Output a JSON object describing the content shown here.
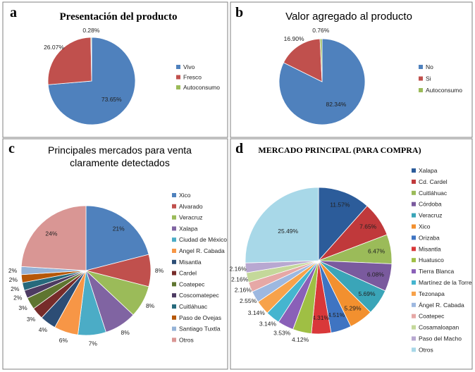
{
  "chart_data": [
    {
      "panel": "a",
      "type": "pie",
      "title": "Presentación del producto",
      "categories": [
        "Vivo",
        "Fresco",
        "Autoconsumo"
      ],
      "values": [
        73.65,
        26.07,
        0.28
      ],
      "labels": [
        "73.65%",
        "26.07%",
        "0.28%"
      ],
      "colors": [
        "#4f81bd",
        "#c0504d",
        "#9bbb59"
      ],
      "legend": "right"
    },
    {
      "panel": "b",
      "type": "pie",
      "title": "Valor agregado al producto",
      "categories": [
        "No",
        "Si",
        "Autoconsumo"
      ],
      "values": [
        82.34,
        16.9,
        0.76
      ],
      "labels": [
        "82.34%",
        "16.90%",
        "0.76%"
      ],
      "colors": [
        "#4f81bd",
        "#c0504d",
        "#9bbb59"
      ],
      "legend": "right"
    },
    {
      "panel": "c",
      "type": "pie",
      "title": "Principales mercados para venta claramente detectados",
      "title_lines": [
        "Principales mercados para venta",
        "claramente detectados"
      ],
      "categories": [
        "Xico",
        "Alvarado",
        "Veracruz",
        "Xalapa",
        "Ciudad de México",
        "Angel R. Cabada",
        "Misantla",
        "Cardel",
        "Coatepec",
        "Coscomatepec",
        "Cuitláhuac",
        "Paso de Ovejas",
        "Santiago Tuxtla",
        "Otros"
      ],
      "values": [
        21,
        8,
        8,
        8,
        7,
        6,
        4,
        3,
        3,
        2,
        2,
        2,
        2,
        24
      ],
      "labels": [
        "21%",
        "8%",
        "8%",
        "8%",
        "7%",
        "6%",
        "4%",
        "3%",
        "3%",
        "2%",
        "2%",
        "2%",
        "2%",
        "24%"
      ],
      "colors": [
        "#4f81bd",
        "#c0504d",
        "#9bbb59",
        "#8064a2",
        "#4bacc6",
        "#f79646",
        "#2c4d75",
        "#772c2a",
        "#5f7530",
        "#4d3b62",
        "#276a7c",
        "#b65708",
        "#95b3d7",
        "#d99694"
      ],
      "legend": "right"
    },
    {
      "panel": "d",
      "type": "pie",
      "title": "MERCADO PRINCIPAL (PARA COMPRA)",
      "categories": [
        "Xalapa",
        "Cd. Cardel",
        "Cuitláhuac",
        "Córdoba",
        "Veracruz",
        "Xico",
        "Orizaba",
        "Misantla",
        "Huatusco",
        "Tierra Blanca",
        "Martínez de la Torre",
        "Tezonapa",
        "Ángel R. Cabada",
        "Coatepec",
        "Cosamaloapan",
        "Paso del Macho",
        "Otros"
      ],
      "values": [
        11.57,
        7.65,
        6.47,
        6.08,
        5.69,
        5.29,
        4.51,
        4.31,
        4.12,
        3.53,
        3.14,
        3.14,
        2.55,
        2.16,
        2.16,
        2.16,
        25.49
      ],
      "labels": [
        "11.57%",
        "7.65%",
        "6.47%",
        "6.08%",
        "5.69%",
        "5.29%",
        "4.51%",
        "4.31%",
        "4.12%",
        "3.53%",
        "3.14%",
        "3.14%",
        "2.55%",
        "2.16%",
        "2.16%",
        "2.16%",
        "25.49%"
      ],
      "colors": [
        "#2c5c9a",
        "#c0393b",
        "#9bbb59",
        "#7a5a9e",
        "#3aa5b8",
        "#f2902f",
        "#3f74c2",
        "#d9383a",
        "#9fbf44",
        "#8a60b8",
        "#45b5cf",
        "#f7a24a",
        "#9db8e0",
        "#e6a8a6",
        "#c4d89a",
        "#b8a8d1",
        "#a8d8e8"
      ],
      "legend": "right"
    }
  ]
}
